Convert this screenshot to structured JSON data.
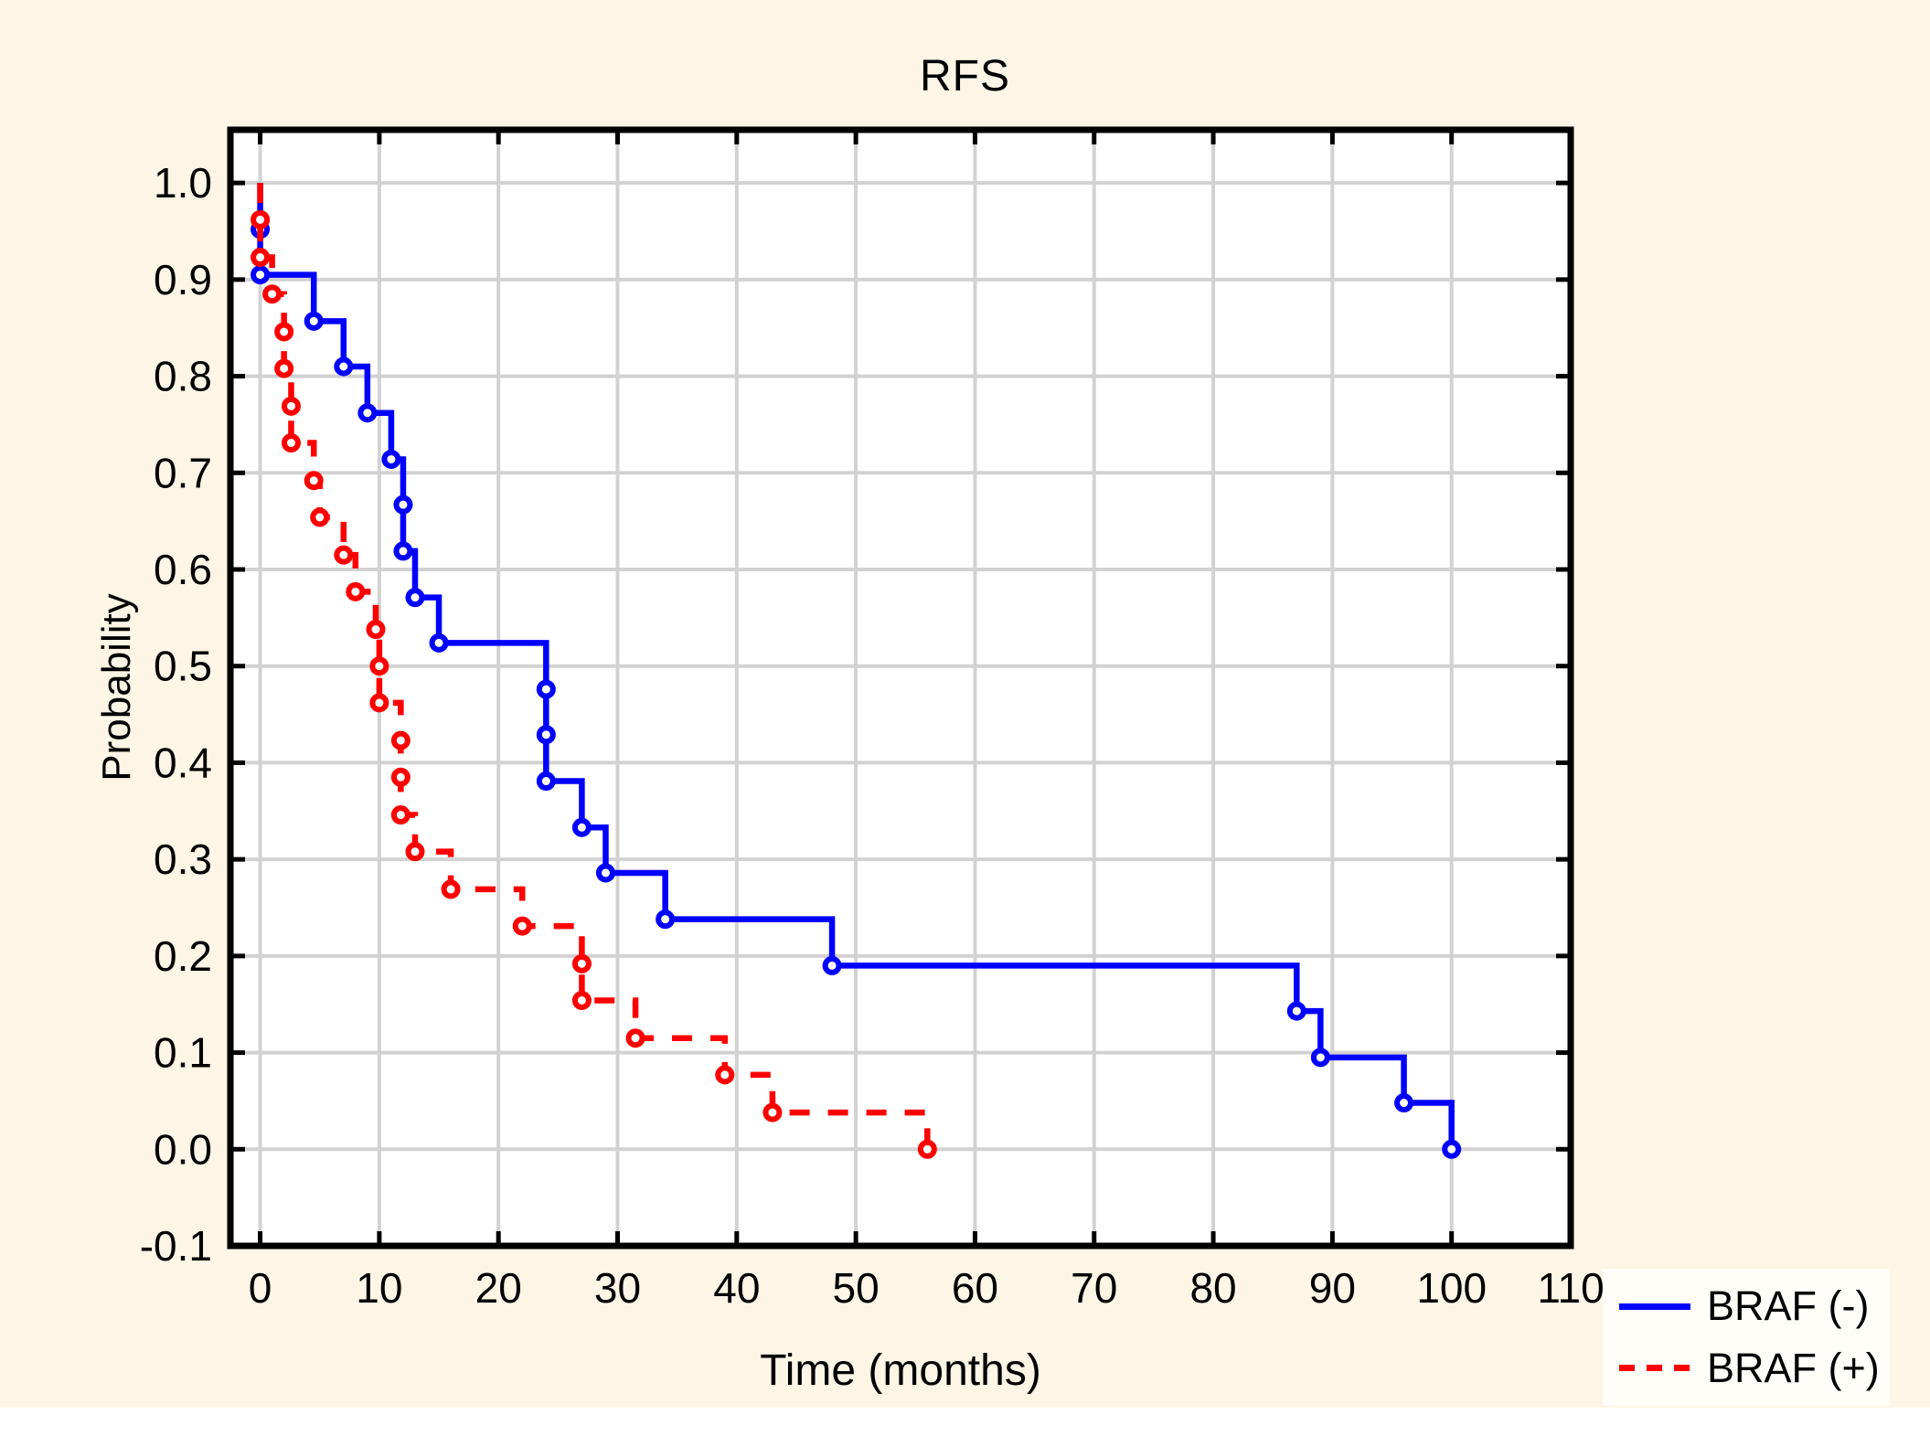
{
  "figure": {
    "title": "RFS",
    "x_axis_label": "Time (months)",
    "y_axis_label": "Probability"
  },
  "chart_data": {
    "type": "line",
    "subtype": "kaplan_meier_step",
    "title": "RFS",
    "xlabel": "Time (months)",
    "ylabel": "Probability",
    "xlim": [
      -2.5,
      110
    ],
    "ylim": [
      -0.1,
      1.055
    ],
    "x_ticks": [
      0,
      10,
      20,
      30,
      40,
      50,
      60,
      70,
      80,
      90,
      100,
      110
    ],
    "x_tick_labels": [
      "0",
      "10",
      "20",
      "30",
      "40",
      "50",
      "60",
      "70",
      "80",
      "90",
      "100",
      "110"
    ],
    "y_ticks": [
      -0.1,
      0,
      0.1,
      0.2,
      0.3,
      0.4,
      0.5,
      0.6,
      0.7,
      0.8,
      0.9,
      1
    ],
    "y_tick_labels": [
      "-0.1",
      "0.0",
      "0.1",
      "0.2",
      "0.3",
      "0.4",
      "0.5",
      "0.6",
      "0.7",
      "0.8",
      "0.9",
      "1.0"
    ],
    "grid": true,
    "legend_position": "bottom-right-outside",
    "colors": {
      "background": "#FDF5E5",
      "plot_background": "#FFFFFF",
      "grid": "#D2D2D2",
      "axis": "#000000",
      "braf_negative": "#0000FF",
      "braf_positive": "#FF0000",
      "legend_background": "#FFFEF8"
    },
    "series": [
      {
        "name": "BRAF (-)",
        "color": "#0000FF",
        "line_style": "solid",
        "marker": "open-circle",
        "start": [
          0,
          1.0
        ],
        "points": [
          [
            0,
            0.952
          ],
          [
            0,
            0.905
          ],
          [
            4.5,
            0.857
          ],
          [
            7,
            0.81
          ],
          [
            9,
            0.762
          ],
          [
            11,
            0.714
          ],
          [
            12,
            0.667
          ],
          [
            12,
            0.619
          ],
          [
            13,
            0.571
          ],
          [
            15,
            0.524
          ],
          [
            24,
            0.476
          ],
          [
            24,
            0.429
          ],
          [
            24,
            0.381
          ],
          [
            27,
            0.333
          ],
          [
            29,
            0.286
          ],
          [
            34,
            0.238
          ],
          [
            48,
            0.19
          ],
          [
            87,
            0.143
          ],
          [
            89,
            0.095
          ],
          [
            96,
            0.048
          ],
          [
            100,
            0.0
          ]
        ]
      },
      {
        "name": "BRAF (+)",
        "color": "#FF0000",
        "line_style": "dashed",
        "marker": "open-circle",
        "start": [
          0,
          1.0
        ],
        "points": [
          [
            0,
            0.962
          ],
          [
            0,
            0.923
          ],
          [
            1,
            0.885
          ],
          [
            2,
            0.846
          ],
          [
            2,
            0.808
          ],
          [
            2.6,
            0.769
          ],
          [
            2.6,
            0.731
          ],
          [
            4.5,
            0.692
          ],
          [
            5,
            0.654
          ],
          [
            7,
            0.615
          ],
          [
            8,
            0.577
          ],
          [
            9.7,
            0.538
          ],
          [
            10,
            0.5
          ],
          [
            10,
            0.462
          ],
          [
            11.8,
            0.423
          ],
          [
            11.8,
            0.385
          ],
          [
            11.8,
            0.346
          ],
          [
            13,
            0.308
          ],
          [
            16,
            0.269
          ],
          [
            22,
            0.231
          ],
          [
            27,
            0.192
          ],
          [
            27,
            0.154
          ],
          [
            31.5,
            0.115
          ],
          [
            39,
            0.077
          ],
          [
            43,
            0.038
          ],
          [
            56,
            0.0
          ]
        ]
      }
    ]
  },
  "legend": {
    "items": [
      {
        "label": "BRAF (-)",
        "style": "solid-blue"
      },
      {
        "label": "BRAF (+)",
        "style": "dashed-red"
      }
    ]
  }
}
